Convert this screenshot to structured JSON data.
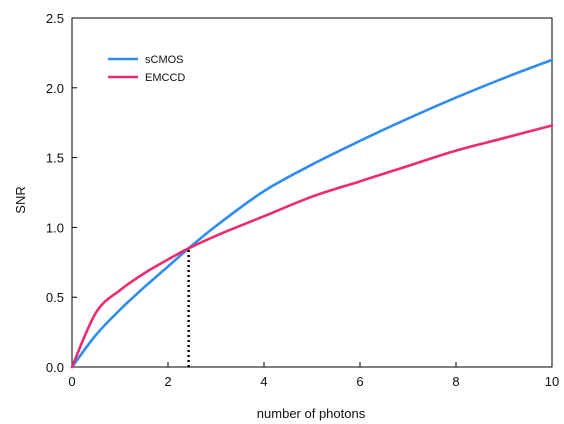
{
  "chart_data": {
    "type": "line",
    "xlabel": "number of photons",
    "ylabel": "SNR",
    "xlim": [
      0,
      10
    ],
    "ylim": [
      0,
      2.5
    ],
    "x_ticks": [
      "0",
      "2",
      "4",
      "6",
      "8",
      "10"
    ],
    "y_ticks": [
      "0.0",
      "0.5",
      "1.0",
      "1.5",
      "2.0",
      "2.5"
    ],
    "grid": false,
    "legend_position": "top-left",
    "series": [
      {
        "name": "sCMOS",
        "color": "#2f8cf0",
        "x": [
          0,
          0.5,
          1,
          1.5,
          2,
          2.43,
          3,
          4,
          5,
          6,
          7,
          8,
          9,
          10
        ],
        "y": [
          0,
          0.23,
          0.41,
          0.57,
          0.72,
          0.85,
          1.01,
          1.26,
          1.45,
          1.62,
          1.78,
          1.93,
          2.07,
          2.2
        ]
      },
      {
        "name": "EMCCD",
        "color": "#ee2a72",
        "x": [
          0,
          0.5,
          1,
          1.5,
          2,
          2.43,
          3,
          4,
          5,
          6,
          7,
          8,
          9,
          10
        ],
        "y": [
          0,
          0.39,
          0.55,
          0.67,
          0.77,
          0.85,
          0.94,
          1.08,
          1.22,
          1.33,
          1.44,
          1.55,
          1.64,
          1.73
        ]
      }
    ],
    "annotations": [
      {
        "type": "vertical-dotted-line",
        "x": 2.43,
        "y_from": 0,
        "y_to": 0.85,
        "color": "#000000"
      }
    ]
  }
}
